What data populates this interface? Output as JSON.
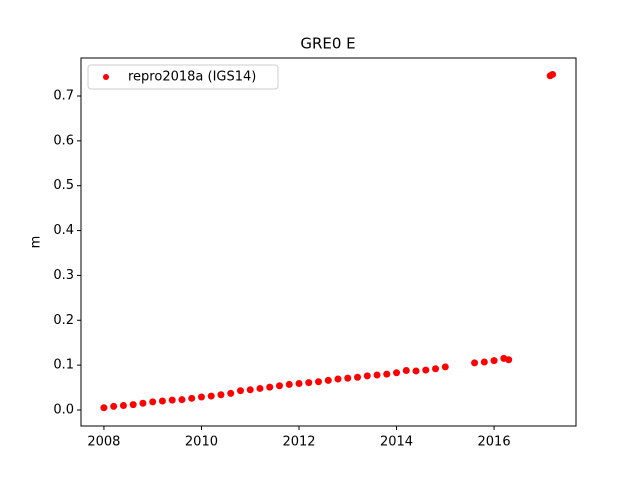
{
  "chart_data": {
    "type": "scatter",
    "title": "GRE0 E",
    "y_label": "m",
    "series": [
      {
        "name": "repro2018a (IGS14)",
        "color": "#ff0000",
        "x": [
          2008.0,
          2008.2,
          2008.4,
          2008.6,
          2008.8,
          2009.0,
          2009.2,
          2009.4,
          2009.6,
          2009.8,
          2010.0,
          2010.2,
          2010.4,
          2010.6,
          2010.8,
          2011.0,
          2011.2,
          2011.4,
          2011.6,
          2011.8,
          2012.0,
          2012.2,
          2012.4,
          2012.6,
          2012.8,
          2013.0,
          2013.2,
          2013.4,
          2013.6,
          2013.8,
          2014.0,
          2014.2,
          2014.4,
          2014.6,
          2014.8,
          2015.0,
          2015.6,
          2015.8,
          2016.0,
          2016.2,
          2016.3,
          2017.15,
          2017.2
        ],
        "values": [
          0.005,
          0.008,
          0.01,
          0.012,
          0.015,
          0.018,
          0.02,
          0.022,
          0.023,
          0.026,
          0.029,
          0.031,
          0.034,
          0.037,
          0.043,
          0.045,
          0.048,
          0.051,
          0.054,
          0.057,
          0.059,
          0.061,
          0.063,
          0.066,
          0.069,
          0.071,
          0.073,
          0.076,
          0.078,
          0.08,
          0.083,
          0.088,
          0.087,
          0.089,
          0.092,
          0.096,
          0.105,
          0.107,
          0.11,
          0.115,
          0.112,
          0.745,
          0.748
        ]
      }
    ],
    "xlim": [
      2007.53,
      2017.68
    ],
    "xticks": [
      2008,
      2010,
      2012,
      2014,
      2016
    ],
    "ylim": [
      -0.0357,
      0.7847
    ],
    "yticks": [
      {
        "value": 0,
        "label": "0.0"
      },
      0.1,
      0.2,
      0.3,
      0.4,
      0.5,
      0.6,
      0.7
    ],
    "legend": "upper left"
  }
}
